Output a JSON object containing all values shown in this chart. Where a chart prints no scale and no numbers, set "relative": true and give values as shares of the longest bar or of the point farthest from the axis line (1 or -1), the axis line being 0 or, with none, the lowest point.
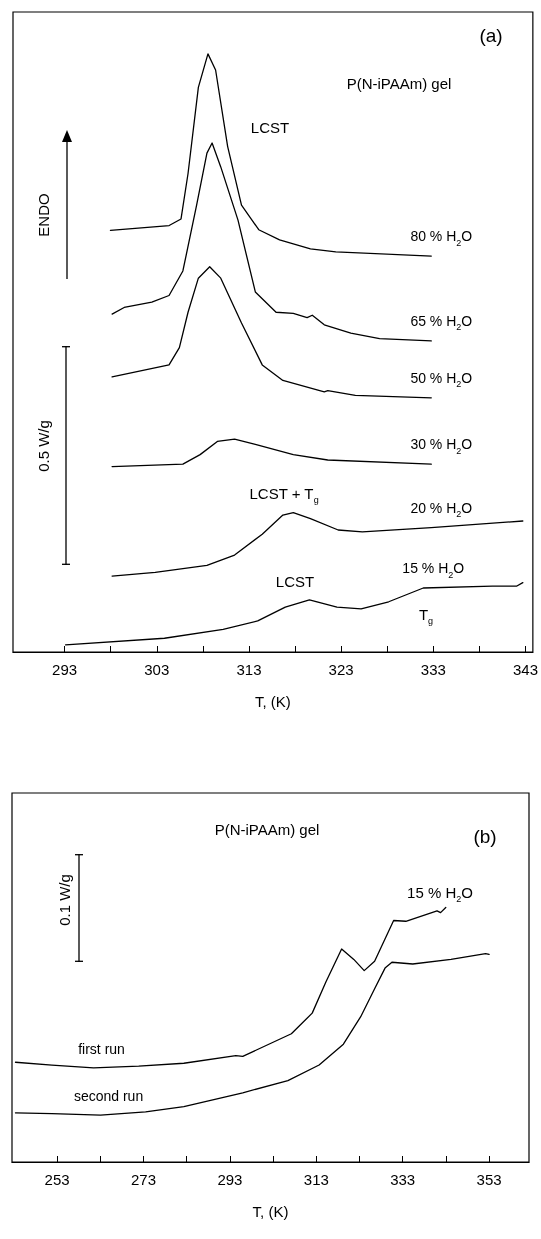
{
  "chart_data": [
    {
      "type": "line",
      "title": "P(N-iPAAm) gel",
      "subtitle": "(a)",
      "xlabel": "T, (K)",
      "ylabel": "ENDO",
      "relative": true,
      "xlim": [
        287.4,
        343.8
      ],
      "xticks": [
        293,
        {
          "value": 298,
          "label": null
        },
        303,
        {
          "value": 308,
          "label": null
        },
        313,
        {
          "value": 318,
          "label": null
        },
        323,
        {
          "value": 328,
          "label": null
        },
        333,
        {
          "value": 338,
          "label": null
        },
        343
      ],
      "annotations": [
        "0.5 W/g",
        "LCST",
        "LCST + T$_{g}$",
        "LCST",
        "T$_{g}$"
      ],
      "series": [
        {
          "name": "80 % H$_{2}$O",
          "color": "#000000",
          "x": [
            297.97,
            304.34,
            305.63,
            306.39,
            307.51,
            308.55,
            309.38,
            310.69,
            312.19,
            314.06,
            316.32,
            319.67,
            322.42,
            332.78
          ],
          "values": [
            0.705,
            0.713,
            0.724,
            0.8,
            0.944,
            1.0,
            0.973,
            0.845,
            0.747,
            0.706,
            0.689,
            0.674,
            0.669,
            0.662
          ]
        },
        {
          "name": "65 % H$_{2}$O",
          "color": "#000000",
          "x": [
            298.15,
            299.46,
            302.46,
            304.33,
            305.83,
            307.32,
            308.44,
            309.0,
            309.94,
            311.81,
            313.69,
            315.94,
            317.81,
            319.31,
            319.87,
            321.17,
            324.05,
            327.17,
            332.78
          ],
          "values": [
            0.565,
            0.576,
            0.585,
            0.596,
            0.637,
            0.747,
            0.834,
            0.851,
            0.811,
            0.722,
            0.602,
            0.568,
            0.566,
            0.559,
            0.563,
            0.547,
            0.533,
            0.524,
            0.52
          ]
        },
        {
          "name": "50 % H$_{2}$O",
          "color": "#000000",
          "x": [
            298.15,
            304.33,
            305.45,
            306.39,
            307.51,
            308.74,
            309.94,
            312.19,
            314.44,
            316.68,
            321.17,
            321.55,
            324.54,
            332.78
          ],
          "values": [
            0.46,
            0.48,
            0.509,
            0.568,
            0.625,
            0.644,
            0.625,
            0.55,
            0.48,
            0.454,
            0.435,
            0.437,
            0.429,
            0.425
          ]
        },
        {
          "name": "30 % H$_{2}$O",
          "color": "#000000",
          "x": [
            298.15,
            305.83,
            307.7,
            309.57,
            311.44,
            313.69,
            317.81,
            321.55,
            332.78
          ],
          "values": [
            0.31,
            0.314,
            0.33,
            0.352,
            0.356,
            0.347,
            0.33,
            0.321,
            0.314
          ]
        },
        {
          "name": "20 % H$_{2}$O",
          "color": "#000000",
          "x": [
            298.15,
            302.83,
            308.44,
            311.44,
            314.44,
            316.68,
            317.81,
            319.67,
            322.68,
            325.3,
            332.78,
            342.71
          ],
          "values": [
            0.127,
            0.133,
            0.145,
            0.162,
            0.197,
            0.229,
            0.233,
            0.223,
            0.204,
            0.201,
            0.208,
            0.219
          ]
        },
        {
          "name": "15 % H$_{2}$O",
          "color": "#000000",
          "x": [
            293.1,
            303.83,
            310.2,
            313.95,
            316.94,
            319.56,
            322.55,
            325.17,
            328.16,
            331.91,
            339.4,
            342.02,
            342.71
          ],
          "values": [
            0.012,
            0.023,
            0.038,
            0.052,
            0.075,
            0.087,
            0.075,
            0.072,
            0.084,
            0.107,
            0.11,
            0.11,
            0.116
          ]
        }
      ]
    },
    {
      "type": "line",
      "title": "P(N-iPAAm) gel",
      "subtitle": "(b)",
      "xlabel": "T, (K)",
      "relative": true,
      "xlim": [
        242.55,
        362.24
      ],
      "xticks": [
        253,
        {
          "value": 263,
          "label": null
        },
        273,
        {
          "value": 283,
          "label": null
        },
        293,
        {
          "value": 303,
          "label": null
        },
        313,
        {
          "value": 323,
          "label": null
        },
        333,
        {
          "value": 343,
          "label": null
        },
        353
      ],
      "annotations": [
        "0.1 W/g",
        "15 % H$_{2}$O"
      ],
      "series": [
        {
          "name": "first run",
          "color": "#000000",
          "x": [
            243.36,
            251.8,
            261.43,
            271.88,
            282.33,
            294.37,
            295.97,
            307.23,
            312.05,
            315.24,
            318.86,
            321.68,
            324.09,
            326.5,
            330.9,
            333.73,
            340.95,
            341.77,
            342.97
          ],
          "values": [
            0.392,
            0.381,
            0.37,
            0.377,
            0.388,
            0.418,
            0.415,
            0.504,
            0.585,
            0.708,
            0.837,
            0.796,
            0.752,
            0.789,
            0.949,
            0.946,
            0.987,
            0.98,
            1.0
          ]
        },
        {
          "name": "second run",
          "color": "#000000",
          "x": [
            243.36,
            251.8,
            263.05,
            273.48,
            282.33,
            295.97,
            306.42,
            313.65,
            319.27,
            323.28,
            326.5,
            328.91,
            330.51,
            335.33,
            344.18,
            352.19,
            353.0
          ],
          "values": [
            0.193,
            0.19,
            0.184,
            0.197,
            0.218,
            0.272,
            0.32,
            0.381,
            0.463,
            0.571,
            0.681,
            0.762,
            0.785,
            0.778,
            0.796,
            0.819,
            0.816
          ]
        }
      ]
    }
  ]
}
